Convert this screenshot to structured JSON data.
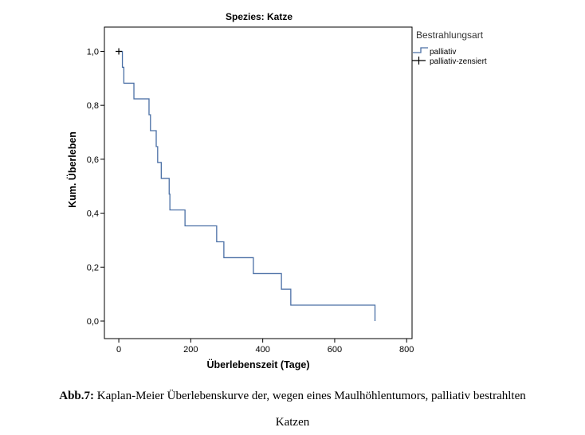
{
  "chart_data": {
    "type": "line",
    "title": "Spezies: Katze",
    "xlabel": "Überlebenszeit (Tage)",
    "ylabel": "Kum. Überleben",
    "xlim": [
      -40,
      815
    ],
    "ylim": [
      -0.065,
      1.09
    ],
    "x_ticks": [
      0,
      200,
      400,
      600,
      800
    ],
    "y_ticks": [
      0.0,
      0.2,
      0.4,
      0.6,
      0.8,
      1.0
    ],
    "x_tick_labels": [
      "0",
      "200",
      "400",
      "600",
      "800"
    ],
    "y_tick_labels": [
      "0,0",
      "0,2",
      "0,4",
      "0,6",
      "0,8",
      "1,0"
    ],
    "legend_title": "Bestrahlungsart",
    "legend_position": "right",
    "series": [
      {
        "name": "palliativ",
        "color": "#4a6fa5",
        "steps": [
          {
            "t": 0,
            "s": 1.0
          },
          {
            "t": 10,
            "s": 0.941
          },
          {
            "t": 14,
            "s": 0.882
          },
          {
            "t": 42,
            "s": 0.824
          },
          {
            "t": 84,
            "s": 0.765
          },
          {
            "t": 88,
            "s": 0.706
          },
          {
            "t": 104,
            "s": 0.647
          },
          {
            "t": 108,
            "s": 0.588
          },
          {
            "t": 118,
            "s": 0.529
          },
          {
            "t": 140,
            "s": 0.471
          },
          {
            "t": 142,
            "s": 0.412
          },
          {
            "t": 184,
            "s": 0.353
          },
          {
            "t": 272,
            "s": 0.294
          },
          {
            "t": 292,
            "s": 0.235
          },
          {
            "t": 374,
            "s": 0.176
          },
          {
            "t": 452,
            "s": 0.118
          },
          {
            "t": 478,
            "s": 0.059
          },
          {
            "t": 712,
            "s": 0.0
          }
        ]
      },
      {
        "name": "palliativ-zensiert",
        "color": "#000000",
        "points": [
          {
            "t": 0,
            "s": 1.0
          }
        ]
      }
    ]
  },
  "caption": {
    "label": "Abb.7:",
    "line1": " Kaplan-Meier Überlebenskurve der, wegen eines Maulhöhlentumors, palliativ bestrahlten",
    "line2": "Katzen"
  }
}
